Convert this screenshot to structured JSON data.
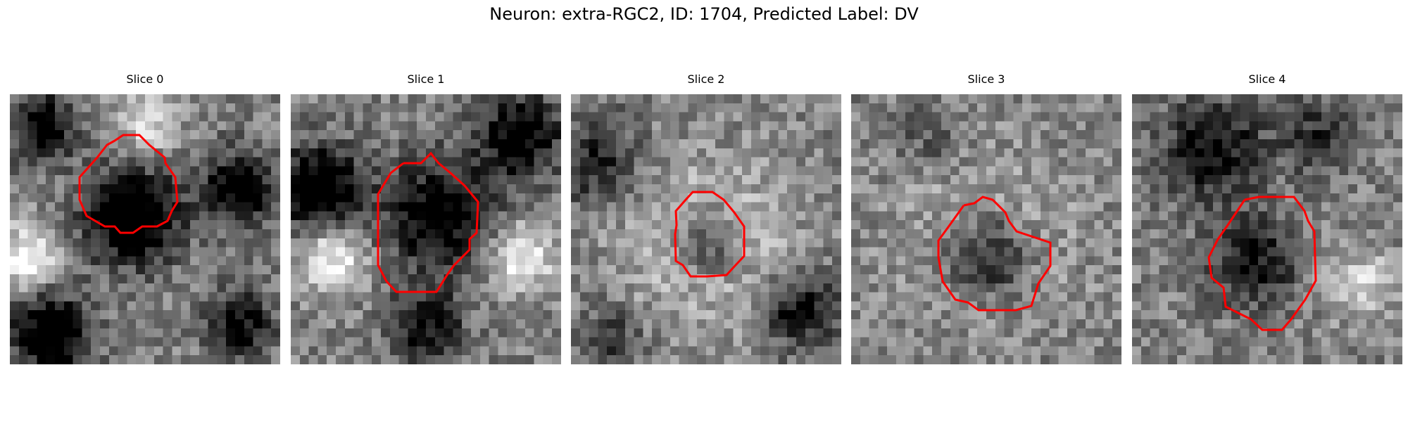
{
  "title": "Neuron: extra-RGC2, ID: 1704, Predicted Label: DV",
  "contour_color": "#ff0000",
  "panels": [
    {
      "title": "Slice 0"
    },
    {
      "title": "Slice 1"
    },
    {
      "title": "Slice 2"
    },
    {
      "title": "Slice 3"
    },
    {
      "title": "Slice 4"
    }
  ]
}
